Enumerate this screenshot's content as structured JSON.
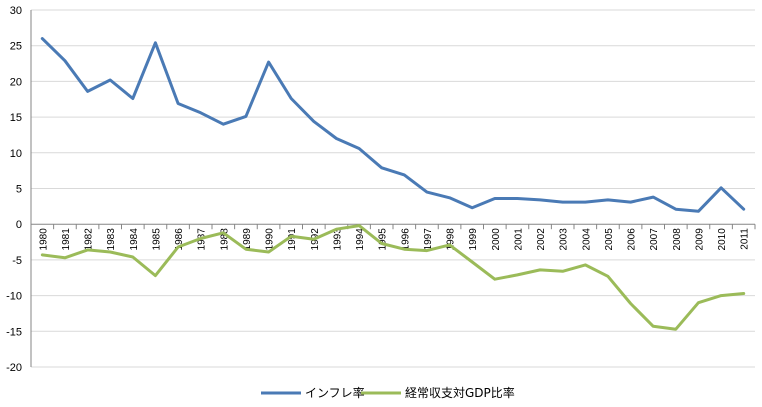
{
  "chart_data": {
    "type": "line",
    "title": "",
    "xlabel": "",
    "ylabel": "",
    "ylim": [
      -20,
      30
    ],
    "yticks": [
      30,
      25,
      20,
      15,
      10,
      5,
      0,
      -5,
      -10,
      -15,
      -20
    ],
    "grid": true,
    "legend_position": "bottom",
    "categories": [
      "1980",
      "1981",
      "1982",
      "1983",
      "1984",
      "1985",
      "1986",
      "1987",
      "1988",
      "1989",
      "1990",
      "1991",
      "1992",
      "1993",
      "1994",
      "1995",
      "1996",
      "1997",
      "1998",
      "1999",
      "2000",
      "2001",
      "2002",
      "2003",
      "2004",
      "2005",
      "2006",
      "2007",
      "2008",
      "2009",
      "2010",
      "2011"
    ],
    "series": [
      {
        "name": "インフレ率",
        "color": "#4a7ab5",
        "values": [
          26.0,
          22.9,
          18.6,
          20.2,
          17.6,
          25.4,
          16.9,
          15.6,
          14.0,
          15.1,
          22.7,
          17.6,
          14.4,
          12.0,
          10.6,
          7.9,
          6.9,
          4.5,
          3.7,
          2.3,
          3.6,
          3.6,
          3.4,
          3.1,
          3.1,
          3.4,
          3.1,
          3.8,
          2.1,
          1.8,
          5.1,
          2.1
        ]
      },
      {
        "name": "経常収支対GDP比率",
        "color": "#9bbb59",
        "values": [
          -4.3,
          -4.7,
          -3.6,
          -3.9,
          -4.6,
          -7.2,
          -3.2,
          -2.0,
          -1.2,
          -3.5,
          -3.9,
          -1.7,
          -2.1,
          -0.7,
          -0.2,
          -2.7,
          -3.5,
          -3.7,
          -2.9,
          -5.3,
          -7.7,
          -7.1,
          -6.4,
          -6.6,
          -5.7,
          -7.3,
          -11.1,
          -14.3,
          -14.7,
          -11.0,
          -10.0,
          -9.7
        ]
      }
    ]
  }
}
